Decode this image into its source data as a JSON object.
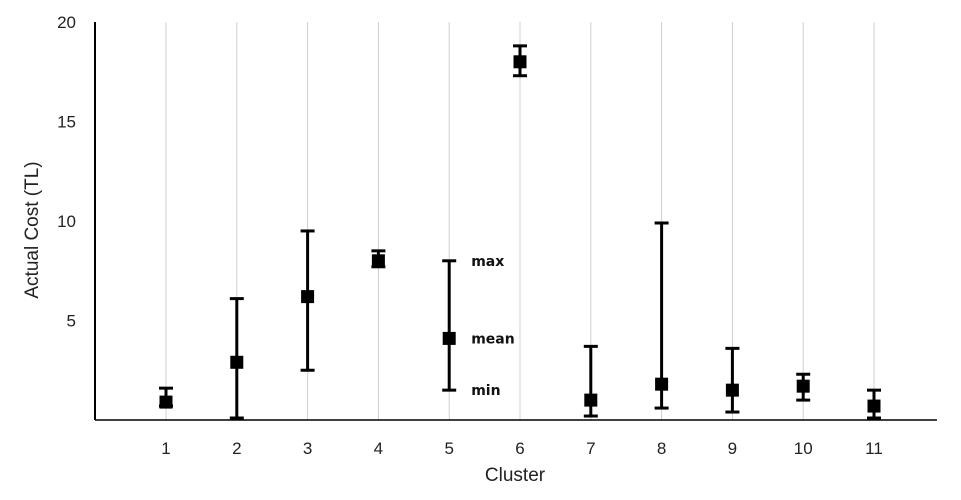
{
  "chart_data": {
    "type": "scatter",
    "title": "",
    "xlabel": "Cluster",
    "ylabel": "Actual Cost (TL)",
    "ylim": [
      0,
      20
    ],
    "yticks": [
      5,
      10,
      15,
      20
    ],
    "grid": "vertical",
    "categories": [
      "1",
      "2",
      "3",
      "4",
      "5",
      "6",
      "7",
      "8",
      "9",
      "10",
      "11"
    ],
    "series": [
      {
        "name": "mean",
        "values": [
          0.9,
          2.9,
          6.2,
          8.0,
          4.1,
          18.0,
          1.0,
          1.8,
          1.5,
          1.7,
          0.7
        ]
      },
      {
        "name": "min",
        "values": [
          0.7,
          0.1,
          2.5,
          7.7,
          1.5,
          17.3,
          0.2,
          0.6,
          0.4,
          1.0,
          0.1
        ]
      },
      {
        "name": "max",
        "values": [
          1.6,
          6.1,
          9.5,
          8.5,
          8.0,
          18.8,
          3.7,
          9.9,
          3.6,
          2.3,
          1.5
        ]
      }
    ],
    "annotations": [
      {
        "text": "max",
        "category": "5",
        "y": 8.0
      },
      {
        "text": "mean",
        "category": "5",
        "y": 4.1
      },
      {
        "text": "min",
        "category": "5",
        "y": 1.5
      }
    ],
    "colors": {
      "marker": "#000000",
      "grid": "#d0d0d0",
      "axis": "#000000"
    }
  }
}
